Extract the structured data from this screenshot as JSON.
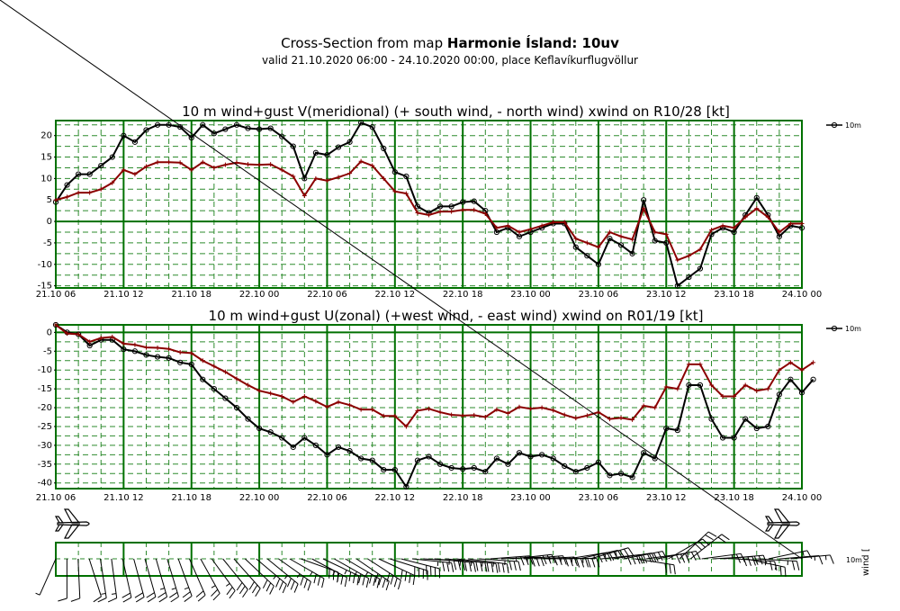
{
  "header": {
    "title_prefix": "Cross-Section from map ",
    "title_model": "Harmonie Ísland: 10uv",
    "subtitle": "valid 21.10.2020 06:00 - 24.10.2020 00:00, place Keflavíkurflugvöllur"
  },
  "colors": {
    "grid_major": "#007000",
    "grid_minor": "#2e8b2e",
    "wind_line": "#000000",
    "gust_line": "#8b0000"
  },
  "icons": [
    "airplane-icon"
  ],
  "chart_data": [
    {
      "type": "line",
      "title": "10 m wind+gust V(meridional) (+ south wind, - north wind) xwind on R10/28 [kt]",
      "x_tick_labels": [
        "21.10 06",
        "21.10 12",
        "21.10 18",
        "22.10 00",
        "22.10 06",
        "22.10 12",
        "22.10 18",
        "23.10 00",
        "23.10 06",
        "23.10 12",
        "23.10 18",
        "24.10 00"
      ],
      "x_range_hours": [
        0,
        66
      ],
      "ylim": [
        -15.5,
        23.5
      ],
      "y_ticks": [
        20,
        15,
        10,
        5,
        0,
        -5,
        -10,
        -15
      ],
      "legend": {
        "label": "10m",
        "position": "top-right"
      },
      "series": [
        {
          "name": "wind",
          "values": [
            4.5,
            8.5,
            11,
            11,
            13,
            15,
            20,
            18.5,
            21.3,
            22.5,
            22.5,
            22,
            19.5,
            22.5,
            20.5,
            21.5,
            22.5,
            21.7,
            21.5,
            21.7,
            19.8,
            17.5,
            10,
            16,
            15.5,
            17.3,
            18.5,
            23,
            22,
            17,
            11.5,
            10.5,
            3.5,
            2,
            3.5,
            3.5,
            4.5,
            4.7,
            2.5,
            -2.5,
            -1.5,
            -3.5,
            -2.5,
            -1.5,
            -0.5,
            -0.5,
            -6,
            -8,
            -10,
            -4,
            -5.5,
            -7.5,
            5,
            -4.5,
            -5,
            -15,
            -13,
            -11,
            -3,
            -1.5,
            -2.5,
            1.5,
            5.5,
            1.5,
            -3.5,
            -1,
            -1.5
          ]
        },
        {
          "name": "gust",
          "values": [
            5,
            5.7,
            6.7,
            6.7,
            7.5,
            9,
            12,
            11,
            12.8,
            13.8,
            13.8,
            13.7,
            12,
            13.8,
            12.5,
            13.2,
            13.7,
            13.3,
            13.2,
            13.3,
            12,
            10.5,
            6,
            10,
            9.5,
            10.3,
            11.2,
            14,
            13,
            10,
            7,
            6.5,
            2,
            1.5,
            2.3,
            2.3,
            2.7,
            2.7,
            1.8,
            -1.5,
            -1,
            -2.5,
            -1.8,
            -1,
            -0.2,
            -0.2,
            -4,
            -5,
            -6,
            -2.5,
            -3.5,
            -4.2,
            3,
            -2.5,
            -3,
            -9,
            -8,
            -6.5,
            -2,
            -1,
            -1.5,
            1,
            3,
            1,
            -2.5,
            -0.5,
            -0.5
          ]
        }
      ]
    },
    {
      "type": "line",
      "title": "10 m wind+gust U(zonal) (+west wind, - east wind) xwind on R01/19 [kt]",
      "x_tick_labels": [
        "21.10 06",
        "21.10 12",
        "21.10 18",
        "22.10 00",
        "22.10 06",
        "22.10 12",
        "22.10 18",
        "23.10 00",
        "23.10 06",
        "23.10 12",
        "23.10 18",
        "24.10 00"
      ],
      "x_range_hours": [
        0,
        66
      ],
      "ylim": [
        -41.5,
        2
      ],
      "y_ticks": [
        0,
        -5,
        -10,
        -15,
        -20,
        -25,
        -30,
        -35,
        -40
      ],
      "legend": {
        "label": "10m",
        "position": "top-right"
      },
      "series": [
        {
          "name": "wind",
          "values": [
            2,
            0,
            -0.5,
            -3.5,
            -2,
            -2,
            -4.5,
            -5,
            -6,
            -6.5,
            -6.8,
            -8,
            -8.5,
            -12.5,
            -15,
            -17.5,
            -20,
            -23,
            -25.5,
            -26.5,
            -28,
            -30.5,
            -28,
            -30,
            -32.5,
            -30.5,
            -31.5,
            -33.5,
            -34,
            -36.5,
            -36.5,
            -41,
            -34,
            -33,
            -35,
            -36,
            -36.3,
            -36,
            -37,
            -33.5,
            -35,
            -32,
            -33,
            -32.5,
            -33.5,
            -35.5,
            -37,
            -36,
            -34.5,
            -38,
            -37.5,
            -38.5,
            -32,
            -33.5,
            -25.5,
            -26,
            -14,
            -14,
            -23,
            -28,
            -28,
            -23,
            -25.5,
            -25,
            -16.5,
            -12.5,
            -16,
            -12.5
          ]
        },
        {
          "name": "gust",
          "values": [
            2,
            -0.3,
            -0.5,
            -2.5,
            -1.5,
            -1.2,
            -3,
            -3.3,
            -4,
            -4.1,
            -4.4,
            -5.3,
            -5.5,
            -7.5,
            -9,
            -10.5,
            -12.3,
            -14,
            -15.5,
            -16.2,
            -17,
            -18.5,
            -17,
            -18.3,
            -19.8,
            -18.5,
            -19.3,
            -20.5,
            -20.5,
            -22.2,
            -22.2,
            -25,
            -20.8,
            -20.3,
            -21.2,
            -21.9,
            -22.1,
            -22,
            -22.5,
            -20.5,
            -21.5,
            -19.8,
            -20.3,
            -20,
            -20.7,
            -21.9,
            -22.8,
            -22.1,
            -21.2,
            -23,
            -22.7,
            -23.2,
            -19.5,
            -20,
            -14.5,
            -15,
            -8.5,
            -8.5,
            -14,
            -17,
            -17,
            -14,
            -15.5,
            -15,
            -10,
            -8,
            -10,
            -8
          ]
        }
      ]
    }
  ]
}
